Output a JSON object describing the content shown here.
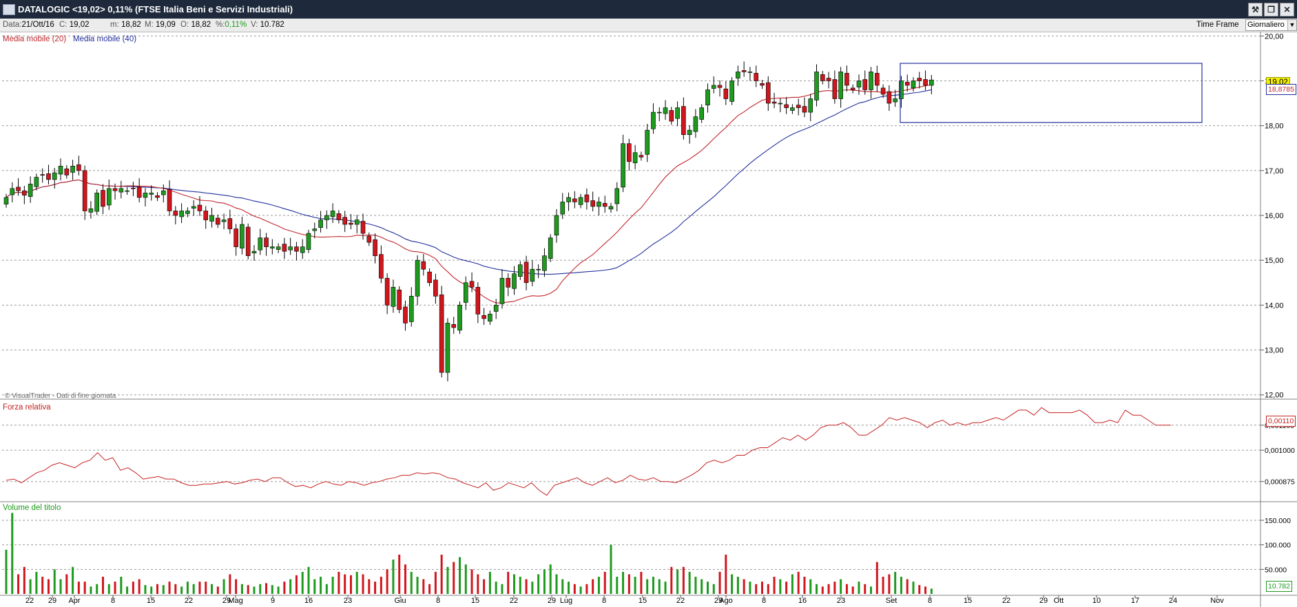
{
  "window": {
    "title": "DATALOGIC <19,02> 0,11%  (FTSE Italia Beni e Servizi Industriali)",
    "buttons": [
      "tools-icon",
      "restore-icon",
      "close-icon"
    ]
  },
  "infobar": {
    "date_label": "Data:",
    "date": "21/Ott/16",
    "close_label": "C:",
    "close": "19,02",
    "min_label": "m:",
    "min": "18,82",
    "max_label": "M:",
    "max": "19,09",
    "open_label": "O:",
    "open": "18,82",
    "pct_label": "%:",
    "pct": "0,11%",
    "vol_label": "V:",
    "vol": "10.782",
    "timeframe_label": "Time Frame",
    "timeframe_value": "Giornaliero"
  },
  "colors": {
    "up": "#1e9a1e",
    "down": "#d0161d",
    "ma20": "#c0262c",
    "ma40": "#222e9c",
    "rs": "#c62020",
    "grid": "#9a9a9a"
  },
  "price_panel": {
    "legend_ma20": "Media mobile (20)",
    "legend_ma40": "Media mobile (40)",
    "watermark": "© VisualTrader - Dati di fine giornata",
    "current_price_badge": "19,02",
    "ma_badge": "18,8785"
  },
  "rs_panel": {
    "label": "Forza relativa",
    "current_badge": "0,00110"
  },
  "volume_panel": {
    "label": "Volume del titolo",
    "current_badge": "10.782"
  },
  "chart_data": [
    {
      "type": "candlestick",
      "title": "DATALOGIC",
      "x_period": "Mar-Ott 2016",
      "y_ticks": [
        "12,00",
        "13,00",
        "14,00",
        "15,00",
        "16,00",
        "17,00",
        "18,00",
        "19,00",
        "20,00"
      ],
      "ylim": [
        11.95,
        20.05
      ],
      "x_tick_labels": [
        "22",
        "29",
        "Apr",
        "8",
        "15",
        "22",
        "29",
        "Mag",
        "9",
        "16",
        "23",
        "Giu",
        "8",
        "15",
        "22",
        "29",
        "Lug",
        "8",
        "15",
        "22",
        "29",
        "Ago",
        "8",
        "16",
        "23",
        "Set",
        "8",
        "15",
        "22",
        "29",
        "Ott",
        "10",
        "17",
        "24",
        "Nov"
      ],
      "grid": true,
      "close": [
        16.4,
        16.6,
        16.55,
        16.45,
        16.7,
        16.85,
        16.9,
        16.8,
        16.95,
        17.1,
        16.9,
        17.1,
        17.0,
        16.1,
        16.15,
        16.5,
        16.2,
        16.6,
        16.55,
        16.6,
        16.55,
        16.6,
        16.4,
        16.5,
        16.5,
        16.4,
        16.55,
        16.1,
        16.0,
        16.1,
        16.1,
        16.2,
        16.1,
        15.9,
        16.0,
        15.8,
        15.9,
        15.7,
        15.3,
        15.8,
        15.1,
        15.2,
        15.5,
        15.3,
        15.3,
        15.3,
        15.2,
        15.3,
        15.2,
        15.3,
        15.6,
        15.7,
        15.9,
        16.0,
        16.1,
        15.9,
        15.8,
        15.8,
        15.9,
        15.6,
        15.4,
        15.1,
        14.6,
        14.0,
        14.4,
        13.9,
        13.6,
        14.2,
        15.0,
        14.8,
        14.5,
        14.2,
        12.5,
        13.6,
        13.5,
        14.0,
        14.5,
        14.4,
        13.8,
        13.7,
        13.8,
        14.0,
        14.6,
        14.4,
        14.7,
        14.9,
        14.5,
        14.8,
        14.8,
        15.1,
        15.5,
        16.0,
        16.3,
        16.4,
        16.3,
        16.4,
        16.3,
        16.2,
        16.3,
        16.2,
        16.2,
        16.6,
        17.6,
        17.2,
        17.4,
        17.3,
        17.9,
        18.3,
        18.3,
        18.4,
        18.1,
        18.4,
        17.8,
        17.9,
        18.2,
        18.4,
        18.8,
        18.9,
        18.85,
        18.6,
        19.0,
        19.2,
        19.2,
        19.2,
        19.0,
        18.9,
        18.5,
        18.5,
        18.5,
        18.4,
        18.4,
        18.4,
        18.3,
        18.6,
        19.2,
        19.0,
        19.0,
        18.6,
        19.2,
        18.9,
        18.8,
        19.0,
        18.8,
        19.2,
        18.9,
        18.7,
        18.5,
        18.6,
        19.0,
        18.9,
        19.0,
        19.0,
        18.9,
        19.02
      ],
      "volume_ylim": [
        0,
        185000
      ],
      "volume_ticks": [
        "50.000",
        "100.000",
        "150.000"
      ],
      "volume": [
        90000,
        165000,
        40000,
        55000,
        30000,
        45000,
        35000,
        30000,
        50000,
        30000,
        40000,
        55000,
        25000,
        25000,
        15000,
        20000,
        35000,
        20000,
        25000,
        35000,
        15000,
        25000,
        30000,
        18000,
        15000,
        20000,
        18000,
        25000,
        20000,
        15000,
        25000,
        20000,
        25000,
        25000,
        20000,
        15000,
        30000,
        40000,
        30000,
        20000,
        18000,
        15000,
        20000,
        22000,
        18000,
        15000,
        25000,
        30000,
        38000,
        45000,
        55000,
        30000,
        35000,
        20000,
        35000,
        45000,
        40000,
        38000,
        45000,
        40000,
        30000,
        25000,
        35000,
        50000,
        70000,
        80000,
        60000,
        45000,
        35000,
        30000,
        20000,
        45000,
        80000,
        55000,
        65000,
        75000,
        60000,
        50000,
        40000,
        30000,
        45000,
        25000,
        20000,
        45000,
        40000,
        35000,
        30000,
        25000,
        40000,
        50000,
        60000,
        40000,
        30000,
        25000,
        20000,
        15000,
        20000,
        30000,
        35000,
        45000,
        100000,
        35000,
        45000,
        40000,
        35000,
        45000,
        30000,
        35000,
        30000,
        25000,
        55000,
        50000,
        55000,
        45000,
        35000,
        30000,
        25000,
        20000,
        45000,
        80000,
        40000,
        35000,
        30000,
        25000,
        20000,
        25000,
        20000,
        35000,
        30000,
        25000,
        40000,
        45000,
        35000,
        30000,
        20000,
        15000,
        20000,
        25000,
        30000,
        20000,
        15000,
        25000,
        20000,
        15000,
        65000,
        35000,
        40000,
        45000,
        35000,
        30000,
        25000,
        18000,
        15000,
        10782
      ],
      "relative_strength_ylim": [
        0.0008,
        0.00119
      ],
      "relative_strength_ticks": [
        "0,000875",
        "0,001000",
        "0,001100"
      ],
      "relative_strength": [
        0.00088,
        0.000885,
        0.00087,
        0.00089,
        0.00091,
        0.00092,
        0.00094,
        0.00095,
        0.00094,
        0.00093,
        0.00095,
        0.00096,
        0.00099,
        0.00096,
        0.00097,
        0.00092,
        0.00093,
        0.00091,
        0.000885,
        0.00089,
        0.000895,
        0.000885,
        0.000885,
        0.00087,
        0.00086,
        0.00086,
        0.000865,
        0.000865,
        0.00087,
        0.000875,
        0.000865,
        0.00087,
        0.00088,
        0.000885,
        0.000875,
        0.00089,
        0.00089,
        0.00087,
        0.000855,
        0.00086,
        0.00085,
        0.000865,
        0.000875,
        0.000865,
        0.00086,
        0.000875,
        0.00087,
        0.00086,
        0.00087,
        0.000875,
        0.000885,
        0.00089,
        0.0009,
        0.0009,
        0.00091,
        0.000905,
        0.00091,
        0.000905,
        0.00089,
        0.000885,
        0.00087,
        0.00086,
        0.00085,
        0.00087,
        0.00084,
        0.00085,
        0.00087,
        0.00086,
        0.00085,
        0.00087,
        0.00084,
        0.00082,
        0.00086,
        0.00087,
        0.00088,
        0.00089,
        0.00087,
        0.00086,
        0.000875,
        0.00089,
        0.00087,
        0.00088,
        0.0009,
        0.000885,
        0.00088,
        0.00089,
        0.000875,
        0.000875,
        0.00087,
        0.000885,
        0.0009,
        0.00092,
        0.00095,
        0.00096,
        0.00095,
        0.00096,
        0.00098,
        0.00098,
        0.001,
        0.00101,
        0.00101,
        0.00103,
        0.00105,
        0.00104,
        0.00106,
        0.00104,
        0.00106,
        0.00109,
        0.0011,
        0.0011,
        0.00111,
        0.00109,
        0.00106,
        0.00106,
        0.00108,
        0.0011,
        0.00113,
        0.00112,
        0.00113,
        0.00112,
        0.00111,
        0.00109,
        0.00111,
        0.00112,
        0.0011,
        0.00111,
        0.0011,
        0.00111,
        0.00111,
        0.00112,
        0.00113,
        0.00112,
        0.00114,
        0.00116,
        0.00116,
        0.00114,
        0.00117,
        0.00115,
        0.00115,
        0.00115,
        0.00115,
        0.00116,
        0.00114,
        0.00111,
        0.00111,
        0.00112,
        0.00111,
        0.00116,
        0.00114,
        0.00114,
        0.00112,
        0.0011,
        0.0011,
        0.0011
      ],
      "annotation": "rectangle around Sep-Oct consolidation, price 18,1-19,4"
    }
  ]
}
